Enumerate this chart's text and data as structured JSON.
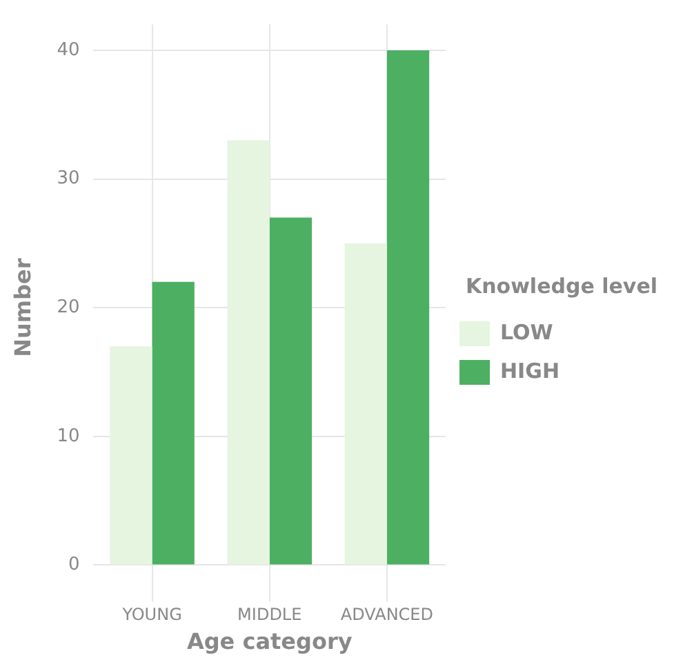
{
  "chart_data": {
    "type": "bar",
    "xlabel": "Age category",
    "ylabel": "Number",
    "legend_title": "Knowledge level",
    "categories": [
      "YOUNG",
      "MIDDLE",
      "ADVANCED"
    ],
    "series": [
      {
        "name": "LOW",
        "color": "#e5f5e0",
        "values": [
          17,
          33,
          25
        ]
      },
      {
        "name": "HIGH",
        "color": "#4daf62",
        "values": [
          22,
          27,
          40
        ]
      }
    ],
    "ylim": [
      -2,
      42
    ],
    "yticks": [
      0,
      10,
      20,
      30,
      40
    ],
    "grid": true,
    "legend": "right"
  }
}
